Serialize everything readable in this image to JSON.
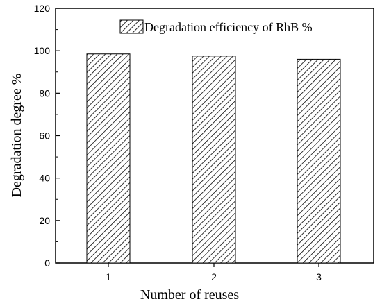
{
  "chart_data": {
    "type": "bar",
    "categories": [
      "1",
      "2",
      "3"
    ],
    "series": [
      {
        "name": "Degradation efficiency of RhB %",
        "values": [
          98.5,
          97.5,
          96.0
        ]
      }
    ],
    "xlabel": "Number of reuses",
    "ylabel": "Degradation degree %",
    "ylim": [
      0,
      120
    ],
    "yticks": [
      0,
      20,
      40,
      60,
      80,
      100,
      120
    ],
    "grid": false,
    "legend_position": "top-right",
    "bar_pattern": "diagonal-hatch",
    "colors": {
      "bar_fill": "#ffffff",
      "hatch": "#000000",
      "axis": "#000000"
    }
  }
}
